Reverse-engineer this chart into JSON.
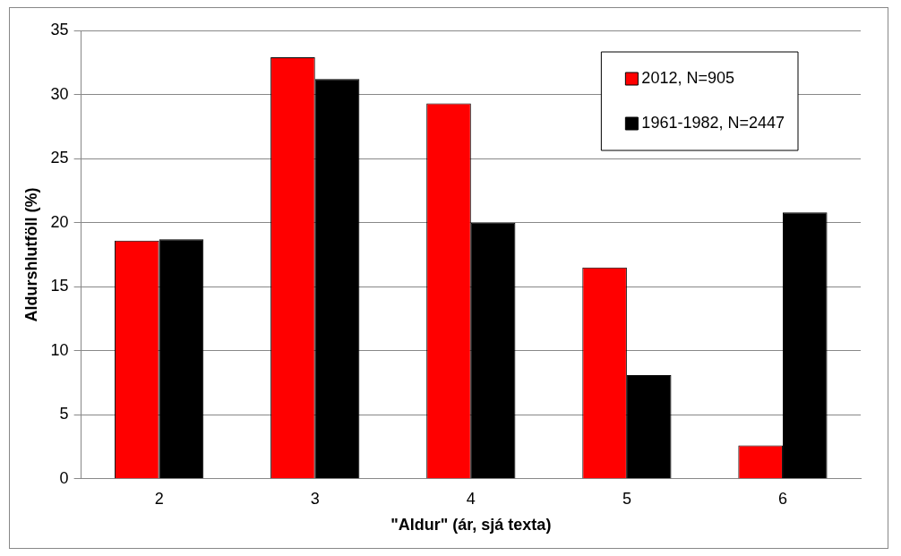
{
  "chart_data": {
    "type": "bar",
    "xlabel": "\"Aldur\" (ár, sjá texta)",
    "ylabel": "Aldurshlutföll (%)",
    "categories": [
      "2",
      "3",
      "4",
      "5",
      "6"
    ],
    "series": [
      {
        "name": "2012, N=905",
        "color": "#ff0000",
        "values": [
          18.6,
          32.9,
          29.3,
          16.5,
          2.6
        ]
      },
      {
        "name": "1961-1982, N=2447",
        "color": "#000000",
        "values": [
          18.7,
          31.2,
          20.0,
          8.1,
          20.8
        ]
      }
    ],
    "ylim": [
      0,
      35
    ],
    "yticks": [
      0,
      5,
      10,
      15,
      20,
      25,
      30,
      35
    ],
    "grid": "y",
    "legend": "top right"
  }
}
